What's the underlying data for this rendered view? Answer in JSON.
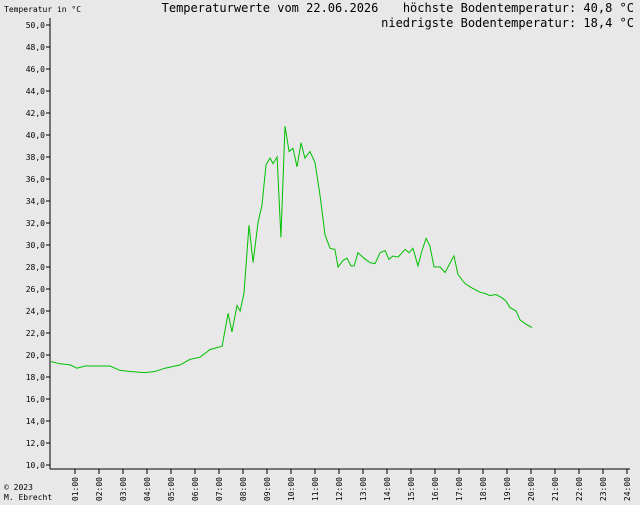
{
  "chart_data": {
    "type": "line",
    "title": "Temperaturwerte vom 22.06.2026",
    "y_label": "Temperatur in °C",
    "annotations": [
      "höchste Bodentemperatur: 40,8 °C",
      "niedrigste Bodentemperatur: 18,4 °C"
    ],
    "footer": [
      "© 2023",
      "M. Ebrecht"
    ],
    "color": "#00c000",
    "xlim": [
      0,
      24
    ],
    "ylim": [
      10,
      50
    ],
    "xticks": [
      {
        "value": 1,
        "label": "01:00"
      },
      {
        "value": 2,
        "label": "02:00"
      },
      {
        "value": 3,
        "label": "03:00"
      },
      {
        "value": 4,
        "label": "04:00"
      },
      {
        "value": 5,
        "label": "05:00"
      },
      {
        "value": 6,
        "label": "06:00"
      },
      {
        "value": 7,
        "label": "07:00"
      },
      {
        "value": 8,
        "label": "08:00"
      },
      {
        "value": 9,
        "label": "09:00"
      },
      {
        "value": 10,
        "label": "10:00"
      },
      {
        "value": 11,
        "label": "11:00"
      },
      {
        "value": 12,
        "label": "12:00"
      },
      {
        "value": 13,
        "label": "13:00"
      },
      {
        "value": 14,
        "label": "14:00"
      },
      {
        "value": 15,
        "label": "15:00"
      },
      {
        "value": 16,
        "label": "16:00"
      },
      {
        "value": 17,
        "label": "17:00"
      },
      {
        "value": 18,
        "label": "18:00"
      },
      {
        "value": 19,
        "label": "19:00"
      },
      {
        "value": 20,
        "label": "20:00"
      },
      {
        "value": 21,
        "label": "21:00"
      },
      {
        "value": 22,
        "label": "22:00"
      },
      {
        "value": 23,
        "label": "23:00"
      },
      {
        "value": 24,
        "label": "24:00"
      }
    ],
    "yticks": [
      {
        "value": 10,
        "label": "10,0"
      },
      {
        "value": 12,
        "label": "12,0"
      },
      {
        "value": 14,
        "label": "14,0"
      },
      {
        "value": 16,
        "label": "16,0"
      },
      {
        "value": 18,
        "label": "18,0"
      },
      {
        "value": 20,
        "label": "20,0"
      },
      {
        "value": 22,
        "label": "22,0"
      },
      {
        "value": 24,
        "label": "24,0"
      },
      {
        "value": 26,
        "label": "26,0"
      },
      {
        "value": 28,
        "label": "28,0"
      },
      {
        "value": 30,
        "label": "30,0"
      },
      {
        "value": 32,
        "label": "32,0"
      },
      {
        "value": 34,
        "label": "34,0"
      },
      {
        "value": 36,
        "label": "36,0"
      },
      {
        "value": 38,
        "label": "38,0"
      },
      {
        "value": 40,
        "label": "40,0"
      },
      {
        "value": 42,
        "label": "42,0"
      },
      {
        "value": 44,
        "label": "44,0"
      },
      {
        "value": 46,
        "label": "46,0"
      },
      {
        "value": 48,
        "label": "48,0"
      },
      {
        "value": 50,
        "label": "50,0"
      }
    ],
    "x": [
      0,
      0.38,
      0.8,
      1.08,
      1.42,
      1.83,
      2.46,
      2.88,
      3.29,
      3.9,
      4.33,
      4.75,
      5.38,
      5.79,
      6.21,
      6.63,
      7.13,
      7.38,
      7.54,
      7.75,
      7.88,
      8.04,
      8.25,
      8.42,
      8.63,
      8.79,
      8.96,
      9.13,
      9.25,
      9.42,
      9.58,
      9.75,
      9.92,
      10.08,
      10.25,
      10.42,
      10.58,
      10.79,
      11,
      11.21,
      11.42,
      11.63,
      11.83,
      11.96,
      12.17,
      12.33,
      12.5,
      12.63,
      12.79,
      13.04,
      13.29,
      13.5,
      13.71,
      13.92,
      14.08,
      14.25,
      14.46,
      14.75,
      14.92,
      15.08,
      15.29,
      15.46,
      15.63,
      15.79,
      15.96,
      16.21,
      16.42,
      16.71,
      16.79,
      16.96,
      17.25,
      17.54,
      17.88,
      18.08,
      18.29,
      18.54,
      18.79,
      18.96,
      19.13,
      19.38,
      19.54,
      19.79,
      20.04
    ],
    "values": [
      19.4,
      19.2,
      19.1,
      18.8,
      19,
      19,
      19,
      18.6,
      18.5,
      18.4,
      18.5,
      18.8,
      19.1,
      19.6,
      19.8,
      20.5,
      20.8,
      23.8,
      22.1,
      24.5,
      24,
      25.6,
      31.8,
      28.4,
      32.1,
      33.6,
      37.3,
      37.9,
      37.4,
      38,
      30.7,
      40.8,
      38.5,
      38.8,
      37.1,
      39.3,
      37.9,
      38.5,
      37.5,
      34.5,
      30.9,
      29.7,
      29.6,
      28,
      28.6,
      28.8,
      28.1,
      28.1,
      29.3,
      28.8,
      28.4,
      28.3,
      29.3,
      29.5,
      28.7,
      29,
      28.9,
      29.6,
      29.3,
      29.7,
      28.1,
      29.5,
      30.6,
      29.9,
      28,
      28,
      27.5,
      28.7,
      29,
      27.3,
      26.5,
      26.1,
      25.7,
      25.6,
      25.4,
      25.5,
      25.2,
      24.9,
      24.3,
      24,
      23.2,
      22.8,
      22.5
    ]
  }
}
